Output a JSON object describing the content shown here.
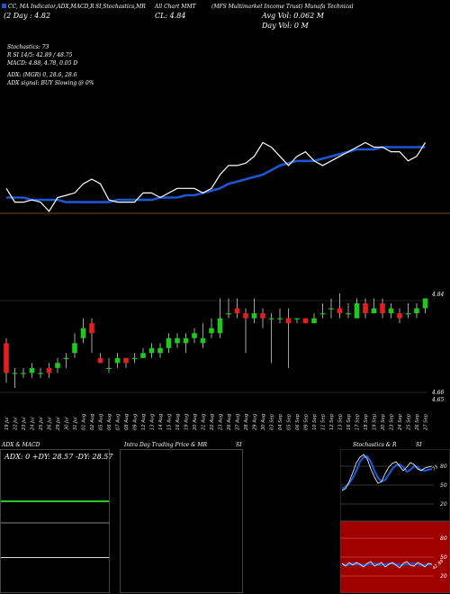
{
  "header": {
    "legend_chart": "CC, MA Indicator,ADX,MACD,R",
    "legend_study": "SI,Stochastics,MR",
    "legend_all": "All Chart MMT",
    "ticker_desc": "(MFS Multimarket Income Trust) Munafa Technical",
    "price_date": "(2 Day : 4.82",
    "close_label": "CL: 4.84",
    "avg_vol": "Avg Vol: 0.062  M",
    "day_vol": "Day Vol: 0   M"
  },
  "stats": {
    "stochastics": "Stochastics: 73",
    "rsi": "R                    SI 14/5: 42.89 / 48.75",
    "macd": "MACD: 4.88, 4.78, 0.05 D",
    "adx": "ADX:                           (MGR) 0, 28.6, 28.6",
    "adx_signal": "ADX  signal:                          BUY Slowing @ 0%"
  },
  "price_axis": {
    "top": "4.84",
    "low1": "4.66",
    "low2": "4.65"
  },
  "dates": [
    "19 Jul",
    "22 Jul",
    "23 Jul",
    "24 Jul",
    "25 Jul",
    "26 Jul",
    "29 Jul",
    "30 Jul",
    "31 Jul",
    "01 Aug",
    "02 Aug",
    "05 Aug",
    "06 Aug",
    "07 Aug",
    "08 Aug",
    "09 Aug",
    "12 Aug",
    "13 Aug",
    "14 Aug",
    "15 Aug",
    "16 Aug",
    "19 Aug",
    "20 Aug",
    "21 Aug",
    "22 Aug",
    "23 Aug",
    "26 Aug",
    "27 Aug",
    "28 Aug",
    "29 Aug",
    "30 Aug",
    "03 Sep",
    "04 Sep",
    "05 Sep",
    "06 Sep",
    "09 Sep",
    "10 Sep",
    "11 Sep",
    "12 Sep",
    "13 Sep",
    "16 Sep",
    "17 Sep",
    "18 Sep",
    "19 Sep",
    "20 Sep",
    "23 Sep",
    "24 Sep",
    "25 Sep",
    "26 Sep",
    "27 Sep"
  ],
  "panels": {
    "adx_title": "ADX  & MACD",
    "adx_values": "ADX: 0   +DY: 28.57  -DY: 28.57",
    "intraday_title": "Intra  Day Trading Price  & MR",
    "intraday_si": "SI",
    "stoch_title": "Stochastics & R",
    "stoch_si": "SI",
    "stoch_ticks": [
      "80",
      "50",
      "20"
    ],
    "stoch_label": "73",
    "rsi_ticks": [
      "80",
      "50",
      "20"
    ],
    "rsi_label": "42.89"
  },
  "colors": {
    "ma": "#1e55d2",
    "line": "#ffffff",
    "up": "#1ec81e",
    "down": "#e61e1e",
    "rsi_bg": "#a00000",
    "adx_green": "#28c828"
  },
  "chart_data": [
    {
      "type": "line",
      "title": "",
      "series": [
        {
          "values": [
            4.69,
            4.66,
            4.66,
            4.665,
            4.66,
            4.64,
            4.67,
            4.675,
            4.68,
            4.7,
            4.71,
            4.7,
            4.665,
            4.66,
            4.66,
            4.66,
            4.68,
            4.68,
            4.67,
            4.68,
            4.69,
            4.69,
            4.69,
            4.68,
            4.69,
            4.72,
            4.74,
            4.74,
            4.745,
            4.76,
            4.79,
            4.78,
            4.76,
            4.74,
            4.76,
            4.77,
            4.75,
            4.74,
            4.75,
            4.76,
            4.77,
            4.78,
            4.79,
            4.78,
            4.78,
            4.77,
            4.77,
            4.75,
            4.76,
            4.79
          ]
        },
        {
          "values": [
            4.67,
            4.67,
            4.67,
            4.665,
            4.665,
            4.665,
            4.665,
            4.66,
            4.66,
            4.66,
            4.66,
            4.66,
            4.66,
            4.665,
            4.665,
            4.665,
            4.665,
            4.665,
            4.67,
            4.67,
            4.67,
            4.675,
            4.675,
            4.68,
            4.685,
            4.69,
            4.7,
            4.705,
            4.71,
            4.715,
            4.72,
            4.73,
            4.74,
            4.745,
            4.75,
            4.75,
            4.75,
            4.755,
            4.76,
            4.765,
            4.77,
            4.775,
            4.775,
            4.775,
            4.78,
            4.78,
            4.78,
            4.78,
            4.78,
            4.78
          ]
        }
      ]
    },
    {
      "type": "candlestick",
      "title": "",
      "candles": [
        {
          "o": 4.75,
          "c": 4.69,
          "h": 4.76,
          "l": 4.67
        },
        {
          "o": 4.69,
          "c": 4.69,
          "h": 4.7,
          "l": 4.66
        },
        {
          "o": 4.69,
          "c": 4.69,
          "h": 4.7,
          "l": 4.68
        },
        {
          "o": 4.69,
          "c": 4.7,
          "h": 4.71,
          "l": 4.68
        },
        {
          "o": 4.69,
          "c": 4.69,
          "h": 4.7,
          "l": 4.68
        },
        {
          "o": 4.7,
          "c": 4.69,
          "h": 4.71,
          "l": 4.68
        },
        {
          "o": 4.7,
          "c": 4.71,
          "h": 4.72,
          "l": 4.69
        },
        {
          "o": 4.72,
          "c": 4.72,
          "h": 4.73,
          "l": 4.7
        },
        {
          "o": 4.73,
          "c": 4.75,
          "h": 4.77,
          "l": 4.72
        },
        {
          "o": 4.76,
          "c": 4.78,
          "h": 4.8,
          "l": 4.75
        },
        {
          "o": 4.79,
          "c": 4.77,
          "h": 4.8,
          "l": 4.73
        },
        {
          "o": 4.72,
          "c": 4.71,
          "h": 4.73,
          "l": 4.71
        },
        {
          "o": 4.7,
          "c": 4.7,
          "h": 4.72,
          "l": 4.69
        },
        {
          "o": 4.71,
          "c": 4.72,
          "h": 4.73,
          "l": 4.7
        },
        {
          "o": 4.72,
          "c": 4.71,
          "h": 4.72,
          "l": 4.7
        },
        {
          "o": 4.72,
          "c": 4.72,
          "h": 4.73,
          "l": 4.71
        },
        {
          "o": 4.72,
          "c": 4.73,
          "h": 4.74,
          "l": 4.72
        },
        {
          "o": 4.73,
          "c": 4.74,
          "h": 4.75,
          "l": 4.72
        },
        {
          "o": 4.73,
          "c": 4.74,
          "h": 4.75,
          "l": 4.72
        },
        {
          "o": 4.74,
          "c": 4.76,
          "h": 4.77,
          "l": 4.73
        },
        {
          "o": 4.75,
          "c": 4.76,
          "h": 4.77,
          "l": 4.74
        },
        {
          "o": 4.75,
          "c": 4.76,
          "h": 4.77,
          "l": 4.73
        },
        {
          "o": 4.76,
          "c": 4.77,
          "h": 4.78,
          "l": 4.75
        },
        {
          "o": 4.75,
          "c": 4.76,
          "h": 4.79,
          "l": 4.74
        },
        {
          "o": 4.77,
          "c": 4.78,
          "h": 4.8,
          "l": 4.76
        },
        {
          "o": 4.77,
          "c": 4.8,
          "h": 4.84,
          "l": 4.76
        },
        {
          "o": 4.81,
          "c": 4.81,
          "h": 4.84,
          "l": 4.8
        },
        {
          "o": 4.82,
          "c": 4.81,
          "h": 4.84,
          "l": 4.8
        },
        {
          "o": 4.81,
          "c": 4.8,
          "h": 4.82,
          "l": 4.73
        },
        {
          "o": 4.8,
          "c": 4.81,
          "h": 4.84,
          "l": 4.79
        },
        {
          "o": 4.81,
          "c": 4.8,
          "h": 4.82,
          "l": 4.78
        },
        {
          "o": 4.8,
          "c": 4.8,
          "h": 4.81,
          "l": 4.71
        },
        {
          "o": 4.8,
          "c": 4.8,
          "h": 4.82,
          "l": 4.79
        },
        {
          "o": 4.8,
          "c": 4.79,
          "h": 4.82,
          "l": 4.7
        },
        {
          "o": 4.8,
          "c": 4.8,
          "h": 4.8,
          "l": 4.79
        },
        {
          "o": 4.8,
          "c": 4.79,
          "h": 4.8,
          "l": 4.79
        },
        {
          "o": 4.79,
          "c": 4.8,
          "h": 4.81,
          "l": 4.79
        },
        {
          "o": 4.81,
          "c": 4.81,
          "h": 4.83,
          "l": 4.8
        },
        {
          "o": 4.82,
          "c": 4.82,
          "h": 4.84,
          "l": 4.8
        },
        {
          "o": 4.82,
          "c": 4.81,
          "h": 4.85,
          "l": 4.8
        },
        {
          "o": 4.81,
          "c": 4.81,
          "h": 4.83,
          "l": 4.8
        },
        {
          "o": 4.8,
          "c": 4.83,
          "h": 4.84,
          "l": 4.8
        },
        {
          "o": 4.83,
          "c": 4.81,
          "h": 4.84,
          "l": 4.8
        },
        {
          "o": 4.81,
          "c": 4.82,
          "h": 4.84,
          "l": 4.81
        },
        {
          "o": 4.83,
          "c": 4.81,
          "h": 4.84,
          "l": 4.8
        },
        {
          "o": 4.81,
          "c": 4.82,
          "h": 4.83,
          "l": 4.8
        },
        {
          "o": 4.81,
          "c": 4.8,
          "h": 4.82,
          "l": 4.79
        },
        {
          "o": 4.81,
          "c": 4.81,
          "h": 4.83,
          "l": 4.8
        },
        {
          "o": 4.81,
          "c": 4.82,
          "h": 4.83,
          "l": 4.8
        },
        {
          "o": 4.82,
          "c": 4.84,
          "h": 4.84,
          "l": 4.81
        }
      ]
    }
  ]
}
